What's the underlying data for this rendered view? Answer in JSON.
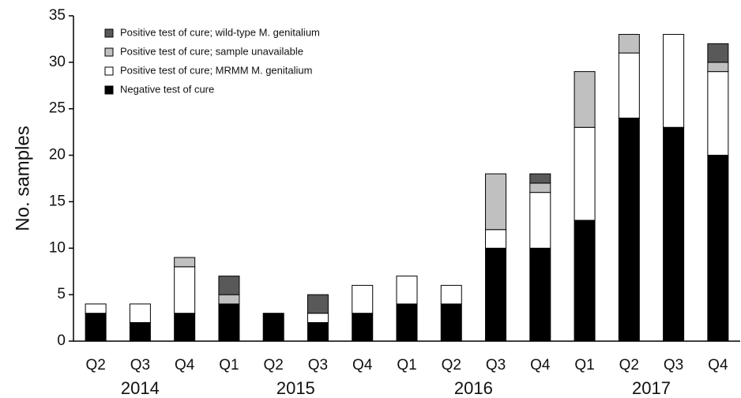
{
  "chart_data": {
    "type": "stacked_bar",
    "y_label": "No. samples",
    "categories": [
      "Q2",
      "Q3",
      "Q4",
      "Q1",
      "Q2",
      "Q3",
      "Q4",
      "Q1",
      "Q2",
      "Q3",
      "Q4",
      "Q1",
      "Q2",
      "Q3",
      "Q4"
    ],
    "groups": [
      {
        "name": "2014",
        "count": 3
      },
      {
        "name": "2015",
        "count": 4
      },
      {
        "name": "2016",
        "count": 4
      },
      {
        "name": "2017",
        "count": 4
      }
    ],
    "series": [
      {
        "name": "Negative test of cure",
        "color": "#000000",
        "values": [
          3,
          2,
          3,
          4,
          3,
          2,
          3,
          4,
          4,
          10,
          10,
          13,
          24,
          23,
          20
        ]
      },
      {
        "name": "Positive test of cure; MRMM M. genitalium",
        "color": "#ffffff",
        "values": [
          1,
          2,
          5,
          0,
          0,
          1,
          3,
          3,
          2,
          2,
          6,
          10,
          7,
          10,
          9
        ]
      },
      {
        "name": "Positive test of cure; sample unavailable",
        "color": "#c0c0c0",
        "values": [
          0,
          0,
          1,
          1,
          0,
          0,
          0,
          0,
          0,
          6,
          1,
          6,
          2,
          0,
          1
        ]
      },
      {
        "name": "Positive test of cure; wild-type M. genitalium",
        "color": "#595959",
        "values": [
          0,
          0,
          0,
          2,
          0,
          2,
          0,
          0,
          0,
          0,
          1,
          0,
          0,
          0,
          2
        ]
      }
    ],
    "ylim": [
      0,
      35
    ],
    "yticks": [
      0,
      5,
      10,
      15,
      20,
      25,
      30,
      35
    ],
    "grid": false,
    "legend": "top-left"
  }
}
